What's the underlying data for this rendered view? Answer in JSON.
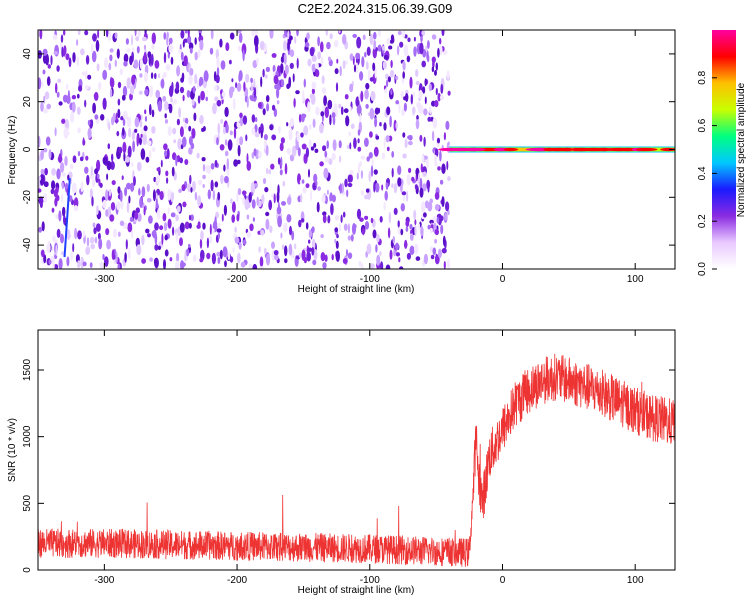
{
  "title": "C2E2.2024.315.06.39.G09",
  "chart_data": [
    {
      "type": "heatmap",
      "title": "C2E2.2024.315.06.39.G09",
      "xlabel": "Height of straight line (km)",
      "ylabel": "Frequency (Hz)",
      "xlim": [
        -350,
        130
      ],
      "ylim": [
        -50,
        50
      ],
      "x_ticks": [
        -300,
        -200,
        -100,
        0,
        100
      ],
      "y_ticks": [
        -40,
        -20,
        0,
        20,
        40
      ],
      "colorbar": {
        "label": "Normalized spectral amplitude",
        "range": [
          0,
          1
        ],
        "ticks": [
          0.0,
          0.2,
          0.4,
          0.6,
          0.8
        ],
        "tick_labels": [
          "0.0",
          "0.2",
          "0.4",
          "0.6",
          "0.8"
        ],
        "colors": [
          "#ffffff",
          "#e9c9ff",
          "#8a2be2",
          "#1a1aff",
          "#00c8ff",
          "#00ff80",
          "#c8ff00",
          "#ffc000",
          "#ff0000",
          "#ff00a0"
        ]
      },
      "regions": [
        {
          "x_range": [
            -350,
            -40
          ],
          "freq_range": [
            -50,
            50
          ],
          "pattern": "noise",
          "amplitude": [
            0.0,
            0.2
          ]
        },
        {
          "x_range": [
            -40,
            130
          ],
          "freq_range": [
            -2,
            2
          ],
          "pattern": "carrier",
          "amplitude": [
            0.5,
            1.0
          ]
        }
      ]
    },
    {
      "type": "line",
      "xlabel": "Height of straight line (km)",
      "ylabel": "SNR (10 * v/v)",
      "xlim": [
        -350,
        130
      ],
      "ylim": [
        0,
        1800
      ],
      "x_ticks": [
        -300,
        -200,
        -100,
        0,
        100
      ],
      "y_ticks": [
        0,
        500,
        1000,
        1500
      ],
      "series": [
        {
          "color": "#ee3333",
          "x": [
            -350,
            -300,
            -250,
            -200,
            -150,
            -100,
            -50,
            -25,
            -22,
            -20,
            -18,
            -15,
            -10,
            0,
            10,
            20,
            30,
            40,
            50,
            70,
            90,
            110,
            130
          ],
          "y": [
            200,
            200,
            190,
            180,
            170,
            160,
            140,
            130,
            600,
            1000,
            700,
            500,
            850,
            1050,
            1250,
            1350,
            1420,
            1450,
            1420,
            1350,
            1250,
            1150,
            1100
          ]
        }
      ]
    }
  ]
}
